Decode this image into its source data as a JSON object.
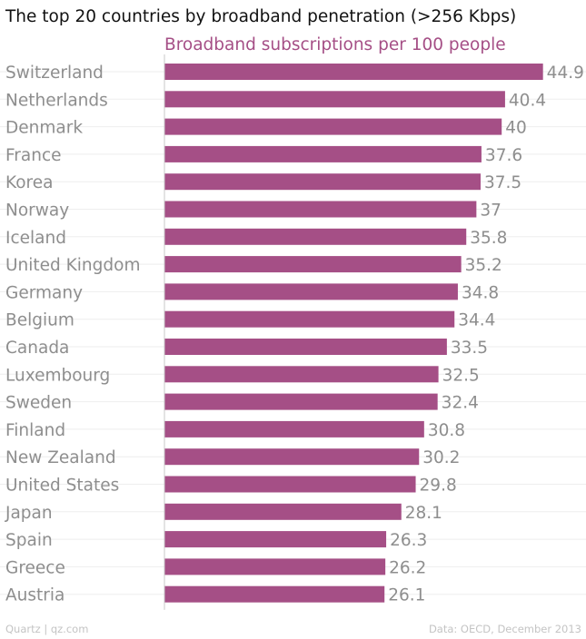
{
  "chart_data": {
    "type": "bar",
    "orientation": "horizontal",
    "title": "The top 20 countries by broadband penetration (>256 Kbps)",
    "subtitle": "Broadband subscriptions per 100 people",
    "categories": [
      "Switzerland",
      "Netherlands",
      "Denmark",
      "France",
      "Korea",
      "Norway",
      "Iceland",
      "United Kingdom",
      "Germany",
      "Belgium",
      "Canada",
      "Luxembourg",
      "Sweden",
      "Finland",
      "New Zealand",
      "United States",
      "Japan",
      "Spain",
      "Greece",
      "Austria"
    ],
    "values": [
      44.9,
      40.4,
      40,
      37.6,
      37.5,
      37,
      35.8,
      35.2,
      34.8,
      34.4,
      33.5,
      32.5,
      32.4,
      30.8,
      30.2,
      29.8,
      28.1,
      26.3,
      26.2,
      26.1
    ],
    "value_labels": [
      "44.9",
      "40.4",
      "40",
      "37.6",
      "37.5",
      "37",
      "35.8",
      "35.2",
      "34.8",
      "34.4",
      "33.5",
      "32.5",
      "32.4",
      "30.8",
      "30.2",
      "29.8",
      "28.1",
      "26.3",
      "26.2",
      "26.1"
    ],
    "xlim": [
      0,
      50
    ],
    "xlabel": "",
    "ylabel": "",
    "legend": "none",
    "grid": true
  },
  "colors": {
    "bar": "#a54f86",
    "category_label": "#8e8e8e",
    "value_label": "#8e8e8e",
    "gridline": "#eeeeee",
    "axis": "#c8c8c8"
  },
  "footer": {
    "source_left": "Quartz | qz.com",
    "source_right": "Data: OECD, December 2013"
  }
}
